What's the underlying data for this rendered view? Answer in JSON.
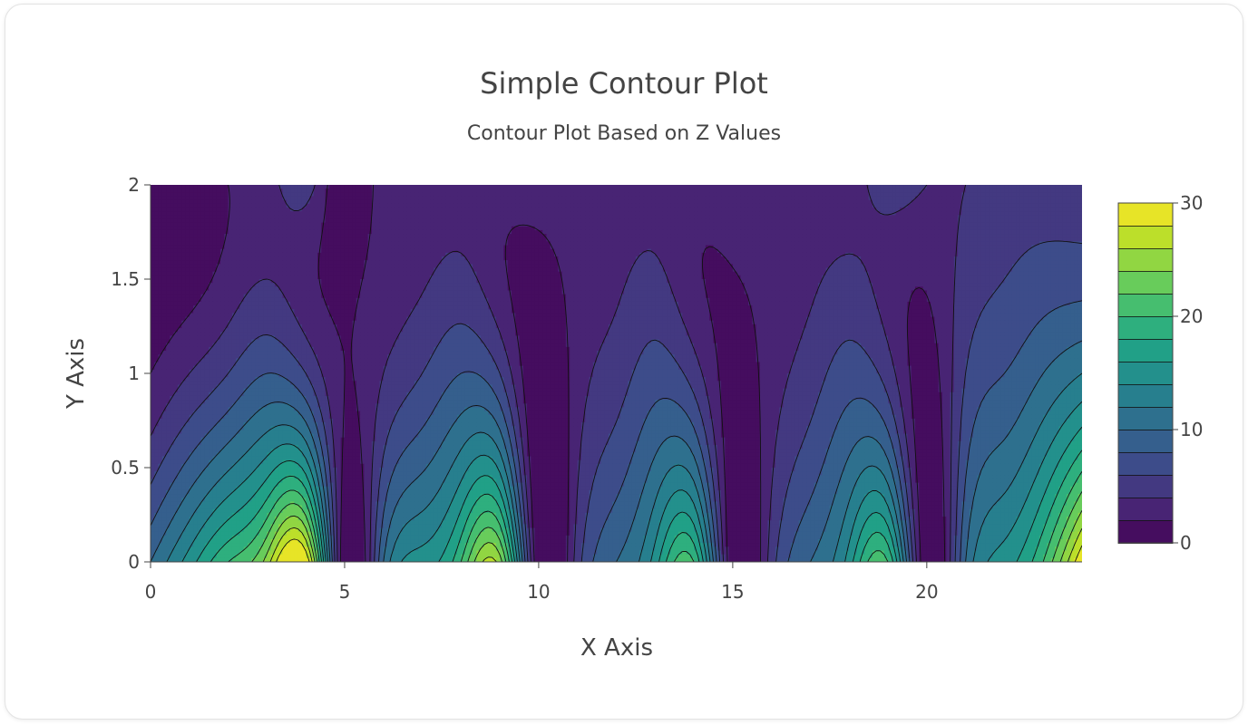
{
  "chart_data": {
    "type": "contour",
    "title": "Simple Contour Plot",
    "subtitle": "Contour Plot Based on Z Values",
    "xlabel": "X Axis",
    "ylabel": "Y Axis",
    "xlim": [
      0,
      24
    ],
    "ylim": [
      0,
      2
    ],
    "xticks": [
      "0",
      "5",
      "10",
      "15",
      "20"
    ],
    "xtick_values": [
      0,
      5,
      10,
      15,
      20
    ],
    "yticks": [
      "0",
      "0.5",
      "1",
      "1.5",
      "2"
    ],
    "ytick_values": [
      0,
      0.5,
      1,
      1.5,
      2
    ],
    "x": [
      0,
      1,
      2,
      3,
      4,
      5,
      6,
      7,
      8,
      9,
      10,
      11,
      12,
      13,
      14,
      15,
      16,
      17,
      18,
      19,
      20,
      21,
      22,
      23,
      24
    ],
    "y": [
      0,
      1,
      2
    ],
    "z": [
      [
        10,
        15,
        20,
        25,
        30,
        0,
        10,
        15,
        20,
        25,
        0,
        5,
        10,
        15,
        20,
        0,
        5,
        10,
        15,
        20,
        0,
        10,
        15,
        20,
        30
      ],
      [
        2,
        4,
        6,
        8,
        6,
        2,
        4,
        6,
        8,
        6,
        0,
        3,
        5,
        7,
        5,
        1,
        3,
        5,
        7,
        5,
        1,
        6,
        8,
        10,
        12
      ],
      [
        0,
        0,
        2,
        3,
        5,
        0,
        3,
        3,
        3,
        3,
        3,
        3,
        3,
        3,
        3,
        3,
        3,
        3,
        3,
        5,
        4,
        4,
        5,
        5,
        5
      ]
    ],
    "colorscale": "Viridis",
    "contour_levels": {
      "start": 0,
      "end": 30,
      "size": 2
    },
    "colorbar": {
      "ticks": [
        "0",
        "10",
        "20",
        "30"
      ],
      "tick_values": [
        0,
        10,
        20,
        30
      ],
      "range": [
        0,
        30
      ]
    },
    "grid": false,
    "legend": false
  }
}
